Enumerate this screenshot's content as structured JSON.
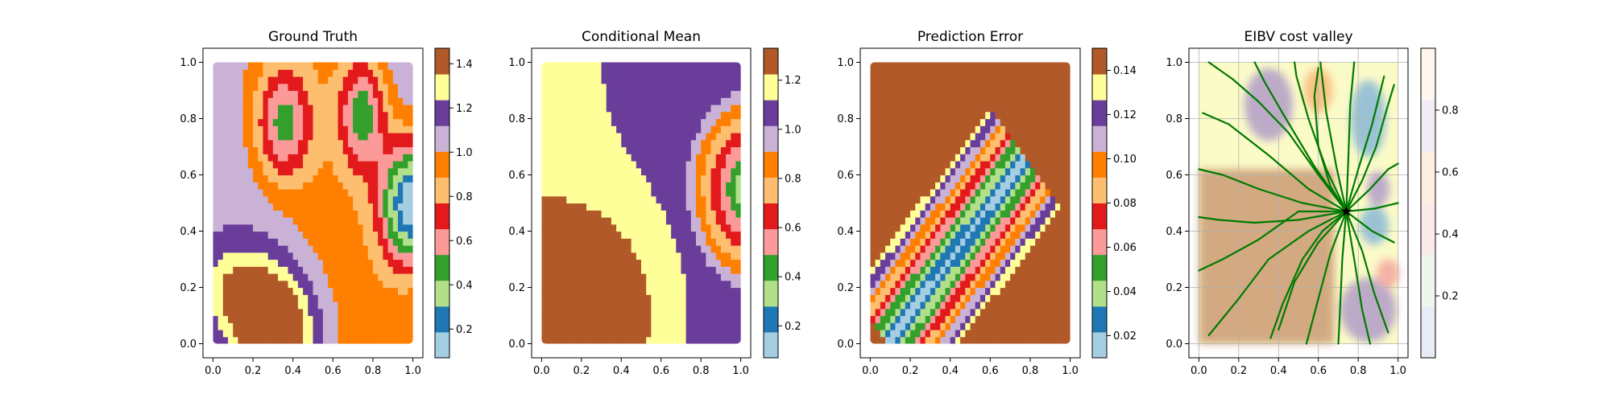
{
  "chart_data": [
    {
      "type": "heatmap",
      "title": "Ground Truth",
      "xticks": [
        "0.0",
        "0.2",
        "0.4",
        "0.6",
        "0.8",
        "1.0"
      ],
      "yticks": [
        "0.0",
        "0.2",
        "0.4",
        "0.6",
        "0.8",
        "1.0"
      ],
      "xlim": [
        -0.05,
        1.05
      ],
      "ylim": [
        -0.05,
        1.05
      ],
      "colorbar": {
        "ticks": [
          "0.2",
          "0.4",
          "0.6",
          "0.8",
          "1.0",
          "1.2",
          "1.4"
        ],
        "range": [
          0.07,
          1.47
        ],
        "tick_values": [
          0.2,
          0.4,
          0.6,
          0.8,
          1.0,
          1.2,
          1.4
        ]
      },
      "grid": false,
      "colormap": [
        "#a6cee3",
        "#1f78b4",
        "#b2df8a",
        "#33a02c",
        "#fb9a99",
        "#e31a1c",
        "#fdbf6f",
        "#ff7f00",
        "#cab2d6",
        "#6a3d9a",
        "#ffff99",
        "#b15928"
      ]
    },
    {
      "type": "heatmap",
      "title": "Conditional Mean",
      "xticks": [
        "0.0",
        "0.2",
        "0.4",
        "0.6",
        "0.8",
        "1.0"
      ],
      "yticks": [
        "0.0",
        "0.2",
        "0.4",
        "0.6",
        "0.8",
        "1.0"
      ],
      "xlim": [
        -0.05,
        1.05
      ],
      "ylim": [
        -0.05,
        1.05
      ],
      "colorbar": {
        "ticks": [
          "0.2",
          "0.4",
          "0.6",
          "0.8",
          "1.0",
          "1.2"
        ],
        "range": [
          0.07,
          1.33
        ],
        "tick_values": [
          0.2,
          0.4,
          0.6,
          0.8,
          1.0,
          1.2
        ]
      },
      "grid": false,
      "colormap": [
        "#a6cee3",
        "#1f78b4",
        "#b2df8a",
        "#33a02c",
        "#fb9a99",
        "#e31a1c",
        "#fdbf6f",
        "#ff7f00",
        "#cab2d6",
        "#6a3d9a",
        "#ffff99",
        "#b15928"
      ]
    },
    {
      "type": "heatmap",
      "title": "Prediction Error",
      "xticks": [
        "0.0",
        "0.2",
        "0.4",
        "0.6",
        "0.8",
        "1.0"
      ],
      "yticks": [
        "0.0",
        "0.2",
        "0.4",
        "0.6",
        "0.8",
        "1.0"
      ],
      "xlim": [
        -0.05,
        1.05
      ],
      "ylim": [
        -0.05,
        1.05
      ],
      "colorbar": {
        "ticks": [
          "0.02",
          "0.04",
          "0.06",
          "0.08",
          "0.10",
          "0.12",
          "0.14"
        ],
        "range": [
          0.01,
          0.15
        ],
        "tick_values": [
          0.02,
          0.04,
          0.06,
          0.08,
          0.1,
          0.12,
          0.14
        ]
      },
      "grid": false,
      "colormap": [
        "#a6cee3",
        "#1f78b4",
        "#b2df8a",
        "#33a02c",
        "#fb9a99",
        "#e31a1c",
        "#fdbf6f",
        "#ff7f00",
        "#cab2d6",
        "#6a3d9a",
        "#ffff99",
        "#b15928"
      ]
    },
    {
      "type": "scatter",
      "title": "EIBV cost valley",
      "xticks": [
        "0.0",
        "0.2",
        "0.4",
        "0.6",
        "0.8",
        "1.0"
      ],
      "yticks": [
        "0.0",
        "0.2",
        "0.4",
        "0.6",
        "0.8",
        "1.0"
      ],
      "xlim": [
        -0.05,
        1.05
      ],
      "ylim": [
        -0.05,
        1.05
      ],
      "colorbar": {
        "ticks": [
          "0.2",
          "0.4",
          "0.6",
          "0.8"
        ],
        "range": [
          0.0,
          1.0
        ],
        "tick_values": [
          0.2,
          0.4,
          0.6,
          0.8
        ]
      },
      "grid": true,
      "current_location": {
        "x": 0.74,
        "y": 0.47
      },
      "path_color": "#007a00",
      "paths": [
        [
          [
            0.74,
            0.47
          ],
          [
            0.6,
            0.6
          ],
          [
            0.45,
            0.75
          ],
          [
            0.3,
            0.86
          ],
          [
            0.17,
            0.94
          ],
          [
            0.05,
            1.0
          ]
        ],
        [
          [
            0.74,
            0.47
          ],
          [
            0.58,
            0.63
          ],
          [
            0.42,
            0.82
          ],
          [
            0.33,
            0.93
          ],
          [
            0.28,
            1.0
          ]
        ],
        [
          [
            0.74,
            0.47
          ],
          [
            0.64,
            0.62
          ],
          [
            0.55,
            0.8
          ],
          [
            0.49,
            0.95
          ],
          [
            0.48,
            1.0
          ]
        ],
        [
          [
            0.74,
            0.47
          ],
          [
            0.69,
            0.63
          ],
          [
            0.64,
            0.82
          ],
          [
            0.61,
            1.0
          ]
        ],
        [
          [
            0.74,
            0.47
          ],
          [
            0.75,
            0.65
          ],
          [
            0.76,
            0.85
          ],
          [
            0.78,
            1.0
          ]
        ],
        [
          [
            0.74,
            0.47
          ],
          [
            0.8,
            0.62
          ],
          [
            0.87,
            0.78
          ],
          [
            0.93,
            0.95
          ]
        ],
        [
          [
            0.74,
            0.47
          ],
          [
            0.86,
            0.55
          ],
          [
            0.95,
            0.62
          ],
          [
            1.0,
            0.64
          ]
        ],
        [
          [
            0.74,
            0.47
          ],
          [
            0.88,
            0.48
          ],
          [
            1.0,
            0.5
          ]
        ],
        [
          [
            0.74,
            0.47
          ],
          [
            0.87,
            0.4
          ],
          [
            0.98,
            0.36
          ]
        ],
        [
          [
            0.74,
            0.47
          ],
          [
            0.82,
            0.33
          ],
          [
            0.88,
            0.18
          ],
          [
            0.95,
            0.04
          ]
        ],
        [
          [
            0.74,
            0.47
          ],
          [
            0.78,
            0.3
          ],
          [
            0.82,
            0.12
          ],
          [
            0.86,
            0.0
          ]
        ],
        [
          [
            0.74,
            0.47
          ],
          [
            0.72,
            0.3
          ],
          [
            0.71,
            0.14
          ],
          [
            0.7,
            0.0
          ]
        ],
        [
          [
            0.74,
            0.47
          ],
          [
            0.66,
            0.32
          ],
          [
            0.6,
            0.16
          ],
          [
            0.54,
            0.0
          ]
        ],
        [
          [
            0.74,
            0.47
          ],
          [
            0.6,
            0.36
          ],
          [
            0.48,
            0.22
          ],
          [
            0.4,
            0.05
          ]
        ],
        [
          [
            0.74,
            0.47
          ],
          [
            0.55,
            0.4
          ],
          [
            0.35,
            0.3
          ],
          [
            0.2,
            0.16
          ],
          [
            0.05,
            0.03
          ]
        ],
        [
          [
            0.74,
            0.47
          ],
          [
            0.5,
            0.44
          ],
          [
            0.28,
            0.43
          ],
          [
            0.1,
            0.44
          ],
          [
            0.0,
            0.45
          ]
        ],
        [
          [
            0.74,
            0.47
          ],
          [
            0.52,
            0.5
          ],
          [
            0.3,
            0.55
          ],
          [
            0.12,
            0.6
          ],
          [
            0.0,
            0.62
          ]
        ],
        [
          [
            0.74,
            0.47
          ],
          [
            0.55,
            0.55
          ],
          [
            0.35,
            0.67
          ],
          [
            0.15,
            0.78
          ],
          [
            0.02,
            0.82
          ]
        ],
        [
          [
            0.74,
            0.47
          ],
          [
            0.5,
            0.47
          ],
          [
            0.3,
            0.37
          ],
          [
            0.12,
            0.3
          ],
          [
            0.0,
            0.26
          ]
        ],
        [
          [
            0.74,
            0.47
          ],
          [
            0.62,
            0.4
          ],
          [
            0.52,
            0.3
          ],
          [
            0.42,
            0.14
          ],
          [
            0.36,
            0.02
          ]
        ],
        [
          [
            0.74,
            0.47
          ],
          [
            0.66,
            0.56
          ],
          [
            0.6,
            0.7
          ],
          [
            0.58,
            0.88
          ],
          [
            0.6,
            0.98
          ]
        ],
        [
          [
            0.74,
            0.47
          ],
          [
            0.82,
            0.58
          ],
          [
            0.89,
            0.7
          ],
          [
            0.95,
            0.85
          ],
          [
            0.98,
            0.92
          ]
        ]
      ],
      "colormap": [
        "#e8ecf7",
        "#eef7ee",
        "#fbeaea",
        "#fdf0e3",
        "#f1ecf6",
        "#fff7ee"
      ]
    }
  ]
}
